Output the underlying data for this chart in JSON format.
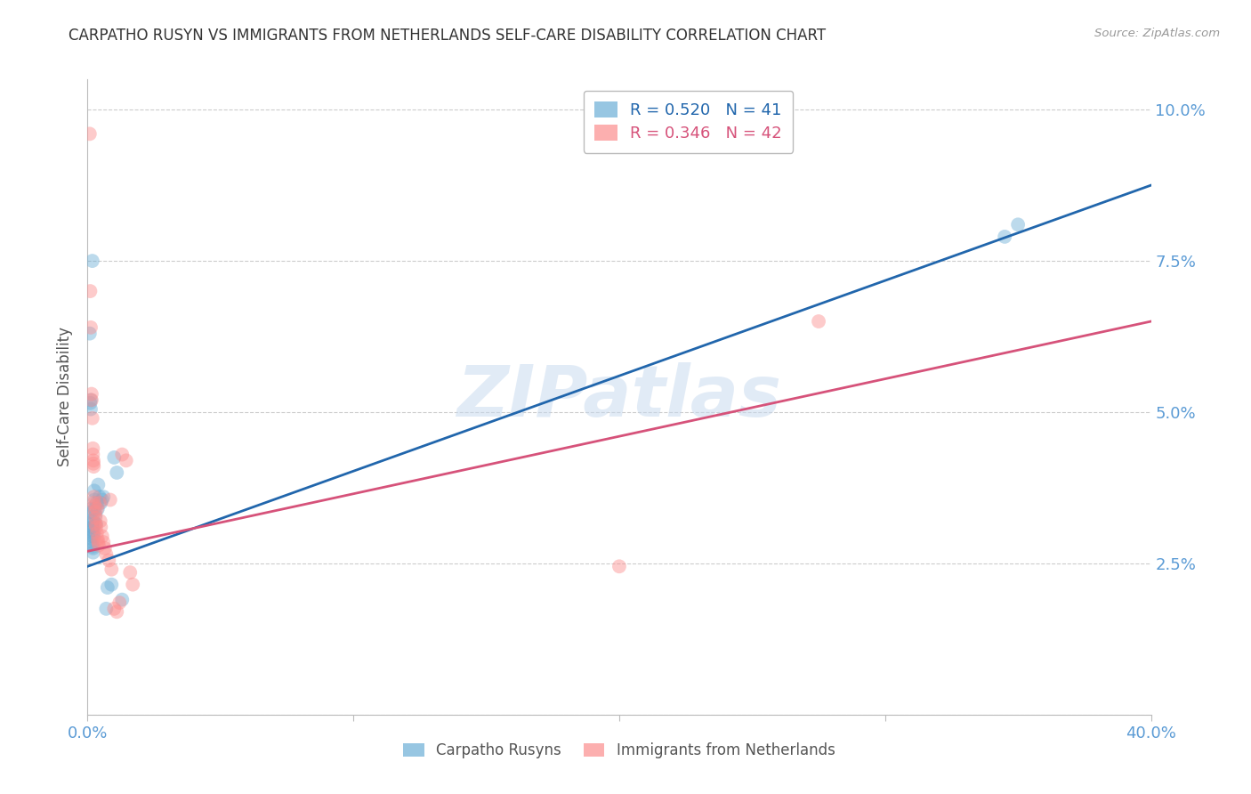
{
  "title": "CARPATHO RUSYN VS IMMIGRANTS FROM NETHERLANDS SELF-CARE DISABILITY CORRELATION CHART",
  "source": "Source: ZipAtlas.com",
  "ylabel": "Self-Care Disability",
  "xmin": 0.0,
  "xmax": 0.4,
  "ymin": 0.0,
  "ymax": 0.105,
  "yticks": [
    0.0,
    0.025,
    0.05,
    0.075,
    0.1
  ],
  "ytick_labels": [
    "",
    "2.5%",
    "5.0%",
    "7.5%",
    "10.0%"
  ],
  "xticks": [
    0.0,
    0.1,
    0.2,
    0.3,
    0.4
  ],
  "xtick_labels": [
    "0.0%",
    "",
    "",
    "",
    "40.0%"
  ],
  "blue_R": 0.52,
  "blue_N": 41,
  "pink_R": 0.346,
  "pink_N": 42,
  "blue_color": "#6baed6",
  "pink_color": "#fc8d8d",
  "blue_line_color": "#2166ac",
  "pink_line_color": "#d6527a",
  "blue_scatter": [
    [
      0.0008,
      0.063
    ],
    [
      0.001,
      0.0515
    ],
    [
      0.0012,
      0.052
    ],
    [
      0.0012,
      0.0505
    ],
    [
      0.0013,
      0.034
    ],
    [
      0.0015,
      0.0335
    ],
    [
      0.0015,
      0.032
    ],
    [
      0.0016,
      0.0315
    ],
    [
      0.0017,
      0.031
    ],
    [
      0.0018,
      0.0305
    ],
    [
      0.0018,
      0.0295
    ],
    [
      0.0019,
      0.029
    ],
    [
      0.002,
      0.0285
    ],
    [
      0.002,
      0.0278
    ],
    [
      0.0021,
      0.0275
    ],
    [
      0.0021,
      0.0268
    ],
    [
      0.0022,
      0.032
    ],
    [
      0.0022,
      0.031
    ],
    [
      0.0023,
      0.03
    ],
    [
      0.0023,
      0.0295
    ],
    [
      0.0025,
      0.037
    ],
    [
      0.0026,
      0.0355
    ],
    [
      0.0027,
      0.034
    ],
    [
      0.003,
      0.033
    ],
    [
      0.0032,
      0.0315
    ],
    [
      0.0035,
      0.035
    ],
    [
      0.0038,
      0.034
    ],
    [
      0.004,
      0.038
    ],
    [
      0.0045,
      0.036
    ],
    [
      0.005,
      0.035
    ],
    [
      0.0055,
      0.0355
    ],
    [
      0.006,
      0.036
    ],
    [
      0.007,
      0.0175
    ],
    [
      0.0075,
      0.021
    ],
    [
      0.009,
      0.0215
    ],
    [
      0.01,
      0.0425
    ],
    [
      0.011,
      0.04
    ],
    [
      0.013,
      0.019
    ],
    [
      0.0018,
      0.075
    ],
    [
      0.35,
      0.081
    ],
    [
      0.345,
      0.079
    ]
  ],
  "pink_scatter": [
    [
      0.0008,
      0.096
    ],
    [
      0.001,
      0.07
    ],
    [
      0.0012,
      0.064
    ],
    [
      0.0015,
      0.053
    ],
    [
      0.0015,
      0.052
    ],
    [
      0.0018,
      0.049
    ],
    [
      0.002,
      0.044
    ],
    [
      0.002,
      0.043
    ],
    [
      0.0022,
      0.042
    ],
    [
      0.0022,
      0.0415
    ],
    [
      0.0023,
      0.041
    ],
    [
      0.0024,
      0.036
    ],
    [
      0.0025,
      0.035
    ],
    [
      0.0026,
      0.0345
    ],
    [
      0.0028,
      0.0335
    ],
    [
      0.003,
      0.0325
    ],
    [
      0.003,
      0.0315
    ],
    [
      0.0032,
      0.031
    ],
    [
      0.0035,
      0.034
    ],
    [
      0.0035,
      0.03
    ],
    [
      0.0038,
      0.029
    ],
    [
      0.004,
      0.0285
    ],
    [
      0.0042,
      0.028
    ],
    [
      0.0045,
      0.035
    ],
    [
      0.0048,
      0.032
    ],
    [
      0.005,
      0.031
    ],
    [
      0.0055,
      0.0295
    ],
    [
      0.006,
      0.0285
    ],
    [
      0.0065,
      0.0275
    ],
    [
      0.007,
      0.0265
    ],
    [
      0.008,
      0.0255
    ],
    [
      0.0085,
      0.0355
    ],
    [
      0.009,
      0.024
    ],
    [
      0.01,
      0.0175
    ],
    [
      0.011,
      0.017
    ],
    [
      0.012,
      0.0185
    ],
    [
      0.013,
      0.043
    ],
    [
      0.0145,
      0.042
    ],
    [
      0.016,
      0.0235
    ],
    [
      0.017,
      0.0215
    ],
    [
      0.2,
      0.0245
    ],
    [
      0.275,
      0.065
    ]
  ],
  "blue_trend_x": [
    0.0,
    0.4
  ],
  "blue_trend_y": [
    0.0245,
    0.0875
  ],
  "pink_trend_x": [
    0.0,
    0.4
  ],
  "pink_trend_y": [
    0.027,
    0.065
  ],
  "watermark_text": "ZIPatlas",
  "background_color": "#ffffff",
  "grid_color": "#cccccc",
  "title_color": "#333333",
  "axis_label_color": "#555555",
  "tick_color": "#5b9bd5"
}
